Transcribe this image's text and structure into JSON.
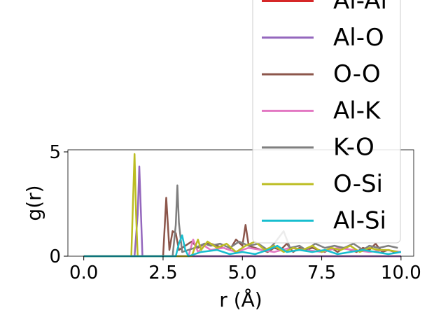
{
  "chart_data": {
    "type": "line",
    "title": "",
    "xlabel": "r (Å)",
    "ylabel": "g(r)",
    "xlim": [
      -0.5,
      10.4
    ],
    "ylim": [
      0,
      5.1
    ],
    "xticks": [
      0.0,
      2.5,
      5.0,
      7.5,
      10.0
    ],
    "xtick_labels": [
      "0.0",
      "2.5",
      "5.0",
      "7.5",
      "10.0"
    ],
    "yticks": [
      0,
      5
    ],
    "ytick_labels": [
      "0",
      "5"
    ],
    "grid": false,
    "legend_position": "top-right",
    "series": [
      {
        "name": "Al-Al",
        "color": "#d62728",
        "x": [
          0.0,
          10.0
        ],
        "y": [
          0.0,
          0.0
        ]
      },
      {
        "name": "Al-O",
        "color": "#9467bd",
        "x": [
          0.0,
          1.6,
          1.7,
          1.75,
          1.8,
          1.85,
          2.0,
          10.0
        ],
        "y": [
          0.0,
          0.0,
          2.0,
          4.3,
          2.2,
          0.0,
          0.0,
          0.0
        ]
      },
      {
        "name": "O-O",
        "color": "#8c564b",
        "x": [
          0.0,
          2.5,
          2.6,
          2.7,
          2.8,
          2.9,
          3.0,
          3.2,
          3.4,
          3.6,
          3.8,
          4.0,
          4.2,
          4.4,
          4.6,
          4.8,
          5.0,
          5.1,
          5.2,
          5.4,
          5.6,
          5.8,
          6.0,
          6.2,
          6.4,
          6.6,
          6.8,
          7.0,
          7.2,
          7.4,
          7.6,
          7.8,
          8.0,
          8.2,
          8.4,
          8.6,
          8.8,
          9.0,
          9.2,
          9.4,
          9.6,
          9.8,
          10.0
        ],
        "y": [
          0.0,
          0.0,
          2.8,
          0.3,
          1.2,
          1.1,
          0.3,
          0.5,
          0.7,
          0.4,
          0.6,
          0.6,
          0.5,
          0.4,
          0.3,
          0.8,
          0.5,
          1.5,
          0.5,
          0.4,
          0.3,
          0.2,
          0.4,
          0.3,
          0.6,
          0.2,
          0.4,
          0.3,
          0.4,
          0.3,
          0.2,
          0.4,
          0.2,
          0.4,
          0.3,
          0.2,
          0.4,
          0.3,
          0.6,
          0.2,
          0.3,
          0.2,
          0.2
        ]
      },
      {
        "name": "Al-K",
        "color": "#e377c2",
        "x": [
          0.0,
          3.3,
          3.45,
          3.6,
          3.8,
          4.0,
          4.4,
          4.8,
          5.2,
          5.6,
          6.0,
          6.5,
          7.0,
          7.5,
          8.0,
          8.5,
          9.0,
          9.5,
          10.0
        ],
        "y": [
          0.0,
          0.0,
          0.8,
          0.2,
          0.5,
          0.3,
          0.4,
          0.2,
          0.4,
          0.3,
          0.2,
          0.4,
          0.3,
          0.2,
          0.4,
          0.3,
          0.2,
          0.3,
          0.2
        ]
      },
      {
        "name": "K-O",
        "color": "#7f7f7f",
        "x": [
          0.0,
          2.8,
          2.9,
          2.95,
          3.0,
          3.1,
          3.5,
          3.8,
          4.0,
          4.3,
          4.6,
          4.9,
          5.2,
          5.5,
          5.8,
          6.0,
          6.3,
          6.5,
          6.8,
          7.0,
          7.3,
          7.6,
          7.9,
          8.2,
          8.5,
          8.8,
          9.0,
          9.3,
          9.6,
          9.9
        ],
        "y": [
          0.0,
          0.0,
          1.5,
          3.4,
          1.6,
          0.2,
          0.4,
          0.6,
          0.5,
          0.6,
          0.4,
          0.7,
          0.5,
          0.6,
          0.3,
          0.6,
          1.2,
          0.4,
          0.5,
          0.3,
          0.6,
          0.4,
          0.5,
          0.4,
          0.6,
          0.3,
          0.5,
          0.4,
          0.5,
          0.4
        ]
      },
      {
        "name": "O-Si",
        "color": "#bcbd22",
        "x": [
          0.0,
          1.5,
          1.55,
          1.6,
          1.65,
          1.7,
          1.8,
          3.4,
          3.6,
          3.7,
          3.9,
          4.2,
          4.5,
          4.8,
          5.1,
          5.4,
          5.7,
          6.0,
          6.3,
          6.6,
          6.9,
          7.2,
          7.5,
          7.8,
          8.1,
          8.4,
          8.7,
          9.0,
          9.3,
          9.6,
          9.9
        ],
        "y": [
          0.0,
          0.0,
          2.5,
          4.9,
          2.0,
          0.0,
          0.0,
          0.0,
          0.8,
          0.3,
          0.7,
          0.4,
          0.6,
          0.2,
          0.5,
          0.7,
          0.3,
          0.5,
          0.2,
          0.4,
          0.3,
          0.5,
          0.2,
          0.4,
          0.3,
          0.5,
          0.2,
          0.4,
          0.3,
          0.3,
          0.2
        ]
      },
      {
        "name": "Al-Si",
        "color": "#17becf",
        "x": [
          0.0,
          2.9,
          3.0,
          3.1,
          3.2,
          3.3,
          3.7,
          4.2,
          4.6,
          5.0,
          5.4,
          5.8,
          6.1,
          6.4,
          6.8,
          7.2,
          7.6,
          8.0,
          8.4,
          8.8,
          9.2,
          9.6,
          10.0
        ],
        "y": [
          0.0,
          0.0,
          0.6,
          1.0,
          0.3,
          0.0,
          0.2,
          0.3,
          0.1,
          0.2,
          0.1,
          0.3,
          0.5,
          0.2,
          0.3,
          0.2,
          0.3,
          0.1,
          0.2,
          0.3,
          0.2,
          0.1,
          0.2
        ]
      }
    ]
  }
}
